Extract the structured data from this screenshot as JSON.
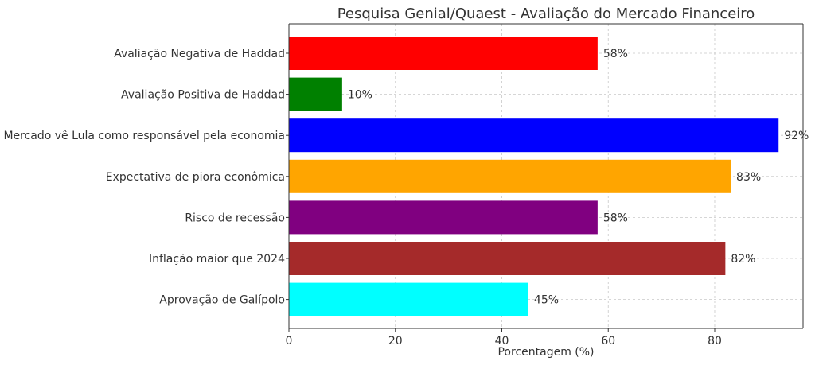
{
  "chart_data": {
    "type": "bar",
    "orientation": "horizontal",
    "title": "Pesquisa Genial/Quaest - Avaliação do Mercado Financeiro",
    "xlabel": "Porcentagem (%)",
    "ylabel": "",
    "xlim": [
      0,
      96.6
    ],
    "xticks": [
      0,
      20,
      40,
      60,
      80
    ],
    "grid": true,
    "categories": [
      "Avaliação Negativa de Haddad",
      "Avaliação Positiva de Haddad",
      "Mercado vê Lula como responsável pela economia",
      "Expectativa de piora econômica",
      "Risco de recessão",
      "Inflação maior que 2024",
      "Aprovação de Galípolo"
    ],
    "values": [
      58,
      10,
      92,
      83,
      58,
      82,
      45
    ],
    "value_labels": [
      "58%",
      "10%",
      "92%",
      "83%",
      "58%",
      "82%",
      "45%"
    ],
    "colors": [
      "#ff0000",
      "#008000",
      "#0000ff",
      "#ffa500",
      "#800080",
      "#a52a2a",
      "#00ffff"
    ]
  }
}
